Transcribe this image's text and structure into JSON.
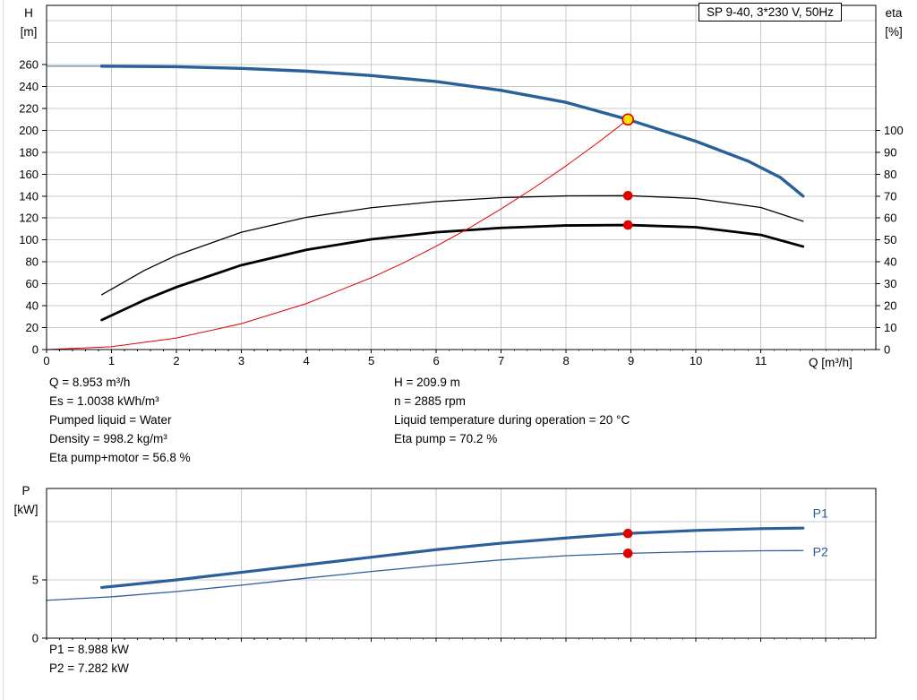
{
  "header": {
    "pump_model_box": "SP 9-40, 3*230 V, 50Hz"
  },
  "top_chart": {
    "left_axis_title": [
      "H",
      "[m]"
    ],
    "right_axis_title": [
      "eta",
      "[%]"
    ],
    "x_axis_title": "Q [m³/h]"
  },
  "bottom_chart": {
    "left_axis_title": [
      "P",
      "[kW]"
    ]
  },
  "operating_point_info": {
    "left_column": [
      "Q = 8.953 m³/h",
      "Es = 1.0038 kWh/m³",
      "Pumped liquid = Water",
      "Density = 998.2 kg/m³",
      "Eta pump+motor = 56.8 %"
    ],
    "right_column": [
      "H = 209.9 m",
      "n = 2885 rpm",
      "Liquid temperature during operation = 20 °C",
      "Eta pump = 70.2 %"
    ]
  },
  "power_info": [
    "P1 = 8.988 kW",
    "P2 = 7.282 kW"
  ],
  "colors": {
    "curve_blue": "#2a6099",
    "curve_red": "#e00000",
    "duty_yellow": "#ffe200",
    "grid": "#c8c8c8"
  },
  "chart_data": [
    {
      "type": "line",
      "title": "SP 9-40, 3*230 V, 50Hz",
      "xlabel": "Q [m³/h]",
      "ylabel": "H [m]",
      "y2label": "eta [%]",
      "xlim": [
        0,
        12.77
      ],
      "ylim": [
        0,
        314
      ],
      "y2lim": [
        0,
        157
      ],
      "x_ticks": [
        0,
        1,
        2,
        3,
        4,
        5,
        6,
        7,
        8,
        9,
        10,
        11
      ],
      "y_ticks": [
        0,
        20,
        40,
        60,
        80,
        100,
        120,
        140,
        160,
        180,
        200,
        220,
        240,
        260
      ],
      "y2_ticks": [
        0,
        10,
        20,
        30,
        40,
        50,
        60,
        70,
        80,
        90,
        100
      ],
      "grid_x": [
        1,
        2,
        3,
        4,
        5,
        6,
        7,
        8,
        9,
        10,
        11,
        12
      ],
      "grid_y": [
        20,
        40,
        60,
        80,
        100,
        120,
        140,
        160,
        180,
        200,
        220,
        240,
        260,
        280,
        300
      ],
      "series": [
        {
          "name": "pump-curve-lead-in",
          "axis": "y",
          "color": "#44688f",
          "width": 1,
          "x": [
            0,
            0.85
          ],
          "y": [
            258.5,
            258.5
          ]
        },
        {
          "name": "pump-curve",
          "axis": "y",
          "color": "#2a6099",
          "width": 3.4,
          "x": [
            0.85,
            2,
            3,
            4,
            5,
            6,
            7,
            8,
            8.953,
            10,
            10.8,
            11.3,
            11.65
          ],
          "y": [
            258.5,
            258,
            256.5,
            254,
            250,
            244.5,
            236.5,
            225.5,
            209.9,
            190,
            172,
            157,
            140
          ]
        },
        {
          "name": "eta-pump-curve",
          "axis": "y2",
          "color": "#000000",
          "width": 1.3,
          "x": [
            0.85,
            1.5,
            2,
            3,
            4,
            5,
            6,
            7,
            8,
            8.953,
            10,
            11,
            11.65
          ],
          "y": [
            25,
            36,
            43,
            53.5,
            60.3,
            64.7,
            67.5,
            69.3,
            70.1,
            70.2,
            68.9,
            64.8,
            58.5
          ]
        },
        {
          "name": "eta-pump-motor-curve",
          "axis": "y2",
          "color": "#000000",
          "width": 2.8,
          "x": [
            0.85,
            1.5,
            2,
            3,
            4,
            5,
            6,
            7,
            8,
            8.953,
            10,
            11,
            11.65
          ],
          "y": [
            13.5,
            22.5,
            28.5,
            38.5,
            45.5,
            50.3,
            53.5,
            55.5,
            56.6,
            56.8,
            55.8,
            52.3,
            47
          ]
        },
        {
          "name": "system-curve",
          "axis": "y",
          "color": "#e00000",
          "width": 1,
          "x": [
            0,
            1,
            2,
            3,
            4,
            5,
            5.5,
            6,
            6.5,
            7,
            7.5,
            8,
            8.5,
            8.953
          ],
          "y": [
            0,
            2.6,
            10.5,
            23.6,
            41.9,
            65.5,
            79.2,
            94.3,
            110.6,
            128.3,
            147.3,
            167.6,
            189.2,
            209.9
          ]
        }
      ],
      "markers": [
        {
          "name": "duty-point",
          "x": 8.953,
          "y": 209.9,
          "axis": "y",
          "fill": "#ffe200",
          "stroke": "#e00000",
          "r": 6
        },
        {
          "name": "eta-pump-point",
          "x": 8.953,
          "y": 70.2,
          "axis": "y2",
          "fill": "#e00000",
          "stroke": "#e00000",
          "r": 4.5
        },
        {
          "name": "eta-pump-motor-point",
          "x": 8.953,
          "y": 56.8,
          "axis": "y2",
          "fill": "#e00000",
          "stroke": "#e00000",
          "r": 4.5
        }
      ]
    },
    {
      "type": "line",
      "title": "",
      "xlabel": "",
      "ylabel": "P [kW]",
      "xlim": [
        0,
        12.77
      ],
      "ylim": [
        0,
        12.85
      ],
      "x_ticks": [
        1,
        2,
        3,
        4,
        5,
        6,
        7,
        8,
        9,
        10,
        11,
        12
      ],
      "y_ticks": [
        0,
        5
      ],
      "grid_x": [
        1,
        2,
        3,
        4,
        5,
        6,
        7,
        8,
        9,
        10,
        11,
        12
      ],
      "grid_y": [
        5,
        10
      ],
      "series": [
        {
          "name": "p1-curve",
          "axis": "y",
          "color": "#2a6099",
          "width": 3.2,
          "x": [
            0.85,
            2,
            3,
            4,
            5,
            6,
            7,
            8,
            8.953,
            10,
            11,
            11.65
          ],
          "y": [
            4.35,
            5.0,
            5.65,
            6.3,
            6.95,
            7.6,
            8.15,
            8.6,
            8.988,
            9.25,
            9.4,
            9.45
          ]
        },
        {
          "name": "p2-curve",
          "axis": "y",
          "color": "#2a6099",
          "width": 1.3,
          "x": [
            0,
            1,
            2,
            3,
            4,
            5,
            6,
            7,
            8,
            8.953,
            10,
            11,
            11.65
          ],
          "y": [
            3.25,
            3.55,
            4.0,
            4.55,
            5.15,
            5.72,
            6.25,
            6.72,
            7.08,
            7.282,
            7.42,
            7.5,
            7.52
          ]
        }
      ],
      "markers": [
        {
          "name": "p1-point",
          "x": 8.953,
          "y": 8.988,
          "axis": "y",
          "fill": "#e00000",
          "stroke": "#e00000",
          "r": 4.5
        },
        {
          "name": "p2-point",
          "x": 8.953,
          "y": 7.282,
          "axis": "y",
          "fill": "#e00000",
          "stroke": "#e00000",
          "r": 4.5
        }
      ],
      "series_labels": [
        {
          "label": "P1",
          "x": 11.8,
          "y": 10.35
        },
        {
          "label": "P2",
          "x": 11.8,
          "y": 7.05
        }
      ]
    }
  ]
}
